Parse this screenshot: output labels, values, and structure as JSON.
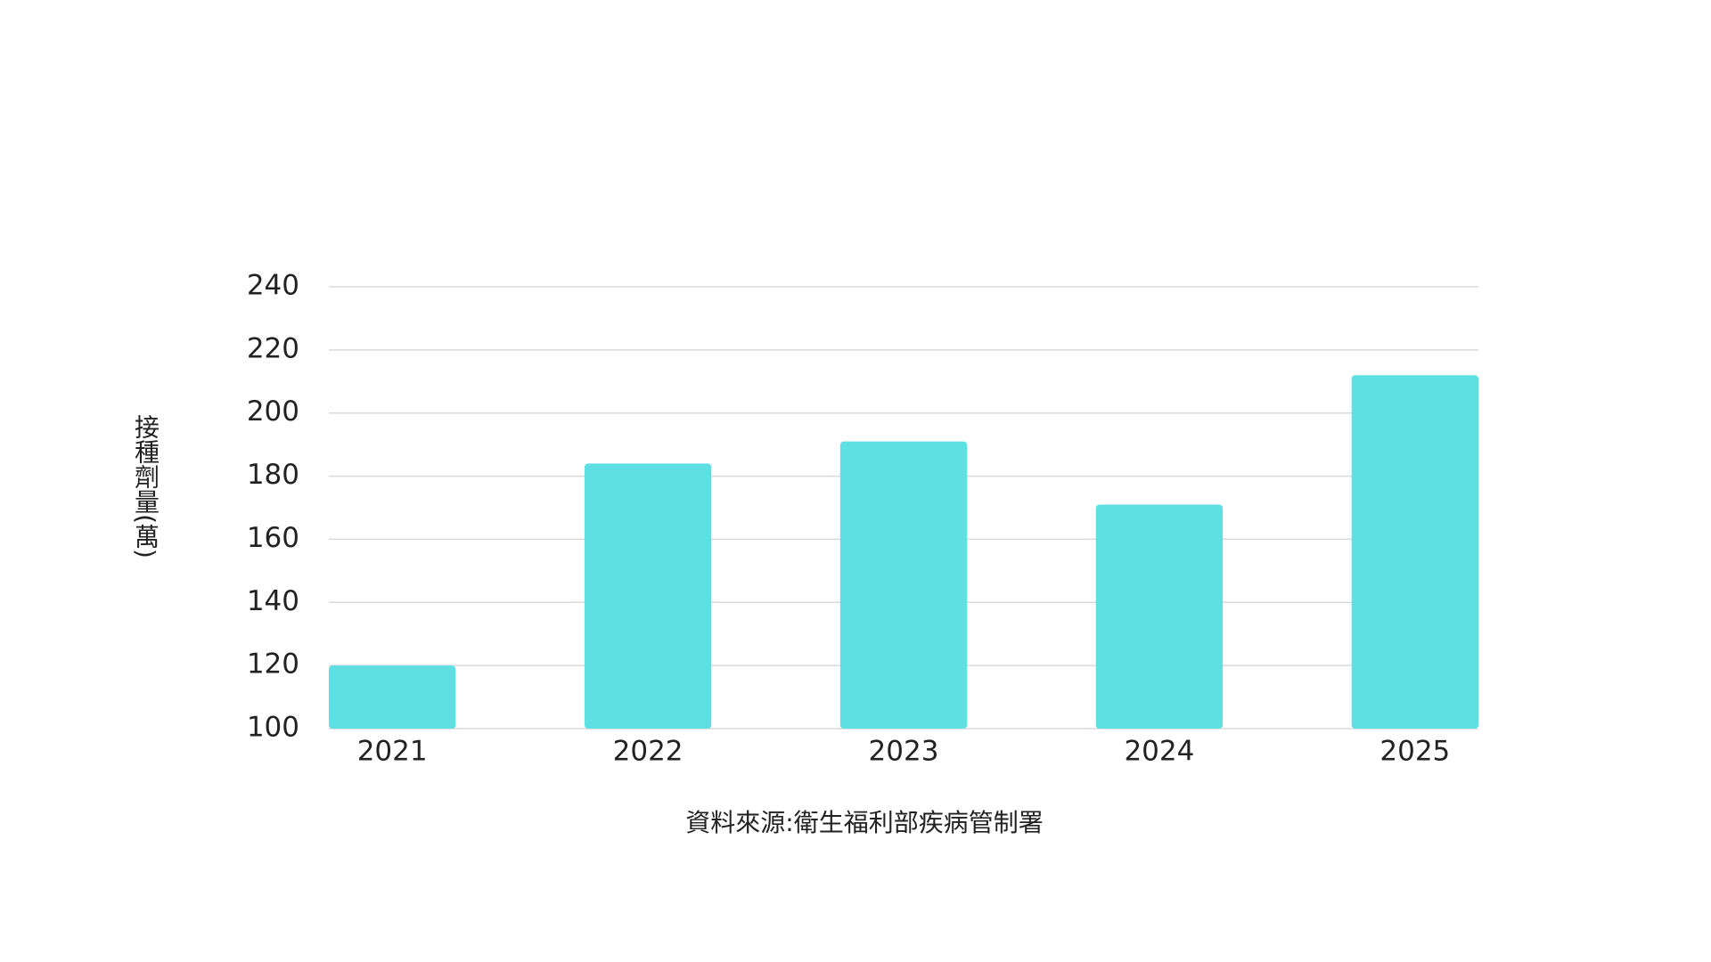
{
  "chart_data": {
    "type": "bar",
    "ylabel": "接種劑量(萬)",
    "source": "資料來源:衛生福利部疾病管制署",
    "categories": [
      "2021",
      "2022",
      "2023",
      "2024",
      "2025"
    ],
    "values": [
      120,
      184,
      191,
      171,
      212
    ],
    "color": "#5ee0e3",
    "ylim": [
      100,
      240
    ],
    "yticks": [
      100,
      120,
      140,
      160,
      180,
      200,
      220,
      240
    ],
    "grid": true
  }
}
